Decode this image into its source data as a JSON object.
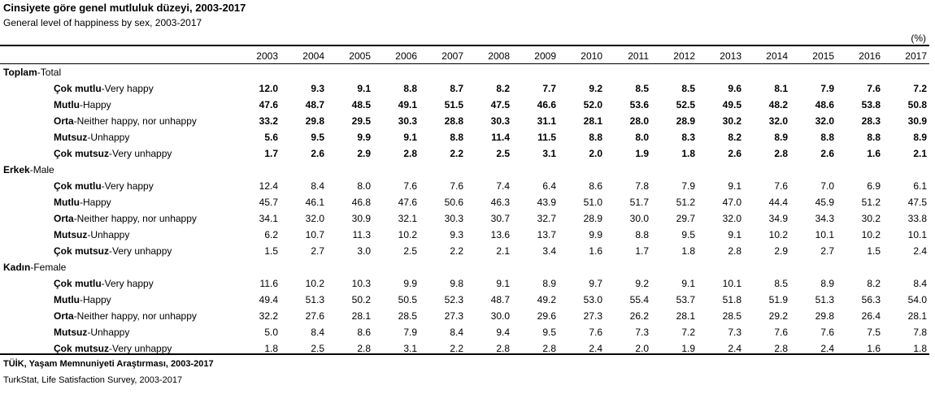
{
  "title_tr": "Cinsiyete göre genel mutluluk düzeyi, 2003-2017",
  "title_en": "General level of happiness by sex, 2003-2017",
  "unit": "(%)",
  "years": [
    "2003",
    "2004",
    "2005",
    "2006",
    "2007",
    "2008",
    "2009",
    "2010",
    "2011",
    "2012",
    "2013",
    "2014",
    "2015",
    "2016",
    "2017"
  ],
  "sections": [
    {
      "label_tr": "Toplam",
      "label_en": "-Total",
      "bold_values": true,
      "rows": [
        {
          "label_tr": "Çok mutlu",
          "label_en": "-Very happy",
          "values": [
            "12.0",
            "9.3",
            "9.1",
            "8.8",
            "8.7",
            "8.2",
            "7.7",
            "9.2",
            "8.5",
            "8.5",
            "9.6",
            "8.1",
            "7.9",
            "7.6",
            "7.2"
          ]
        },
        {
          "label_tr": "Mutlu",
          "label_en": "-Happy",
          "values": [
            "47.6",
            "48.7",
            "48.5",
            "49.1",
            "51.5",
            "47.5",
            "46.6",
            "52.0",
            "53.6",
            "52.5",
            "49.5",
            "48.2",
            "48.6",
            "53.8",
            "50.8"
          ]
        },
        {
          "label_tr": "Orta",
          "label_en": "-Neither happy, nor unhappy",
          "values": [
            "33.2",
            "29.8",
            "29.5",
            "30.3",
            "28.8",
            "30.3",
            "31.1",
            "28.1",
            "28.0",
            "28.9",
            "30.2",
            "32.0",
            "32.0",
            "28.3",
            "30.9"
          ]
        },
        {
          "label_tr": "Mutsuz",
          "label_en": "-Unhappy",
          "values": [
            "5.6",
            "9.5",
            "9.9",
            "9.1",
            "8.8",
            "11.4",
            "11.5",
            "8.8",
            "8.0",
            "8.3",
            "8.2",
            "8.9",
            "8.8",
            "8.8",
            "8.9"
          ]
        },
        {
          "label_tr": "Çok mutsuz",
          "label_en": "-Very unhappy",
          "values": [
            "1.7",
            "2.6",
            "2.9",
            "2.8",
            "2.2",
            "2.5",
            "3.1",
            "2.0",
            "1.9",
            "1.8",
            "2.6",
            "2.8",
            "2.6",
            "1.6",
            "2.1"
          ]
        }
      ]
    },
    {
      "label_tr": "Erkek",
      "label_en": "-Male",
      "bold_values": false,
      "rows": [
        {
          "label_tr": "Çok mutlu",
          "label_en": "-Very happy",
          "values": [
            "12.4",
            "8.4",
            "8.0",
            "7.6",
            "7.6",
            "7.4",
            "6.4",
            "8.6",
            "7.8",
            "7.9",
            "9.1",
            "7.6",
            "7.0",
            "6.9",
            "6.1"
          ]
        },
        {
          "label_tr": "Mutlu",
          "label_en": "-Happy",
          "values": [
            "45.7",
            "46.1",
            "46.8",
            "47.6",
            "50.6",
            "46.3",
            "43.9",
            "51.0",
            "51.7",
            "51.2",
            "47.0",
            "44.4",
            "45.9",
            "51.2",
            "47.5"
          ]
        },
        {
          "label_tr": "Orta",
          "label_en": "-Neither happy, nor unhappy",
          "values": [
            "34.1",
            "32.0",
            "30.9",
            "32.1",
            "30.3",
            "30.7",
            "32.7",
            "28.9",
            "30.0",
            "29.7",
            "32.0",
            "34.9",
            "34.3",
            "30.2",
            "33.8"
          ]
        },
        {
          "label_tr": "Mutsuz",
          "label_en": "-Unhappy",
          "values": [
            "6.2",
            "10.7",
            "11.3",
            "10.2",
            "9.3",
            "13.6",
            "13.7",
            "9.9",
            "8.8",
            "9.5",
            "9.1",
            "10.2",
            "10.1",
            "10.2",
            "10.1"
          ]
        },
        {
          "label_tr": "Çok mutsuz",
          "label_en": "-Very unhappy",
          "values": [
            "1.5",
            "2.7",
            "3.0",
            "2.5",
            "2.2",
            "2.1",
            "3.4",
            "1.6",
            "1.7",
            "1.8",
            "2.8",
            "2.9",
            "2.7",
            "1.5",
            "2.4"
          ]
        }
      ]
    },
    {
      "label_tr": "Kadın",
      "label_en": "-Female",
      "bold_values": false,
      "rows": [
        {
          "label_tr": "Çok mutlu",
          "label_en": "-Very happy",
          "values": [
            "11.6",
            "10.2",
            "10.3",
            "9.9",
            "9.8",
            "9.1",
            "8.9",
            "9.7",
            "9.2",
            "9.1",
            "10.1",
            "8.5",
            "8.9",
            "8.2",
            "8.4"
          ]
        },
        {
          "label_tr": "Mutlu",
          "label_en": "-Happy",
          "values": [
            "49.4",
            "51.3",
            "50.2",
            "50.5",
            "52.3",
            "48.7",
            "49.2",
            "53.0",
            "55.4",
            "53.7",
            "51.8",
            "51.9",
            "51.3",
            "56.3",
            "54.0"
          ]
        },
        {
          "label_tr": "Orta",
          "label_en": "-Neither happy, nor unhappy",
          "values": [
            "32.2",
            "27.6",
            "28.1",
            "28.5",
            "27.3",
            "30.0",
            "29.6",
            "27.3",
            "26.2",
            "28.1",
            "28.5",
            "29.2",
            "29.8",
            "26.4",
            "28.1"
          ]
        },
        {
          "label_tr": "Mutsuz",
          "label_en": "-Unhappy",
          "values": [
            "5.0",
            "8.4",
            "8.6",
            "7.9",
            "8.4",
            "9.4",
            "9.5",
            "7.6",
            "7.3",
            "7.2",
            "7.3",
            "7.6",
            "7.6",
            "7.5",
            "7.8"
          ]
        },
        {
          "label_tr": "Çok mutsuz",
          "label_en": "-Very unhappy",
          "values": [
            "1.8",
            "2.5",
            "2.8",
            "3.1",
            "2.2",
            "2.8",
            "2.8",
            "2.4",
            "2.0",
            "1.9",
            "2.4",
            "2.8",
            "2.4",
            "1.6",
            "1.8"
          ]
        }
      ]
    }
  ],
  "source_tr": "TÜİK, Yaşam Memnuniyeti Araştırması, 2003-2017",
  "source_en": "TurkStat, Life Satisfaction Survey, 2003-2017"
}
